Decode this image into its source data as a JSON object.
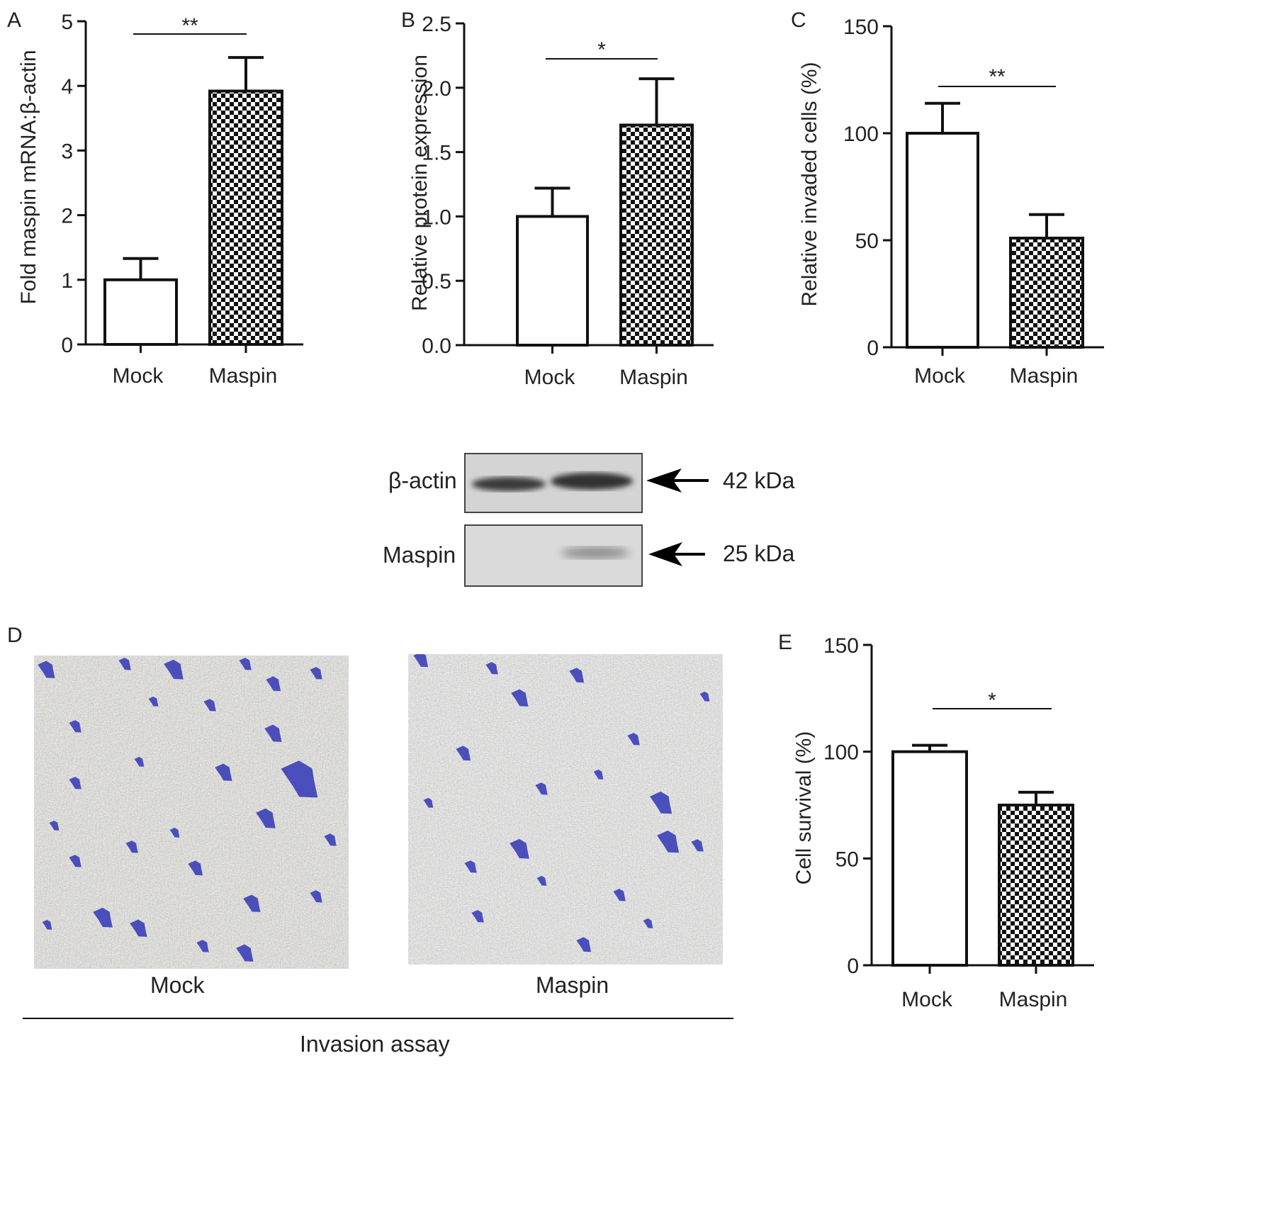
{
  "panel_letters": {
    "a": "A",
    "b": "B",
    "c": "C",
    "d": "D",
    "e": "E"
  },
  "chart_data": [
    {
      "panel": "A",
      "type": "bar",
      "categories": [
        "Mock",
        "Maspin"
      ],
      "values": [
        1.0,
        3.92
      ],
      "errors": [
        0.33,
        0.52
      ],
      "ylabel": "Fold maspin mRNA:β-actin",
      "ylim": [
        0,
        5
      ],
      "yticks": [
        "0",
        "1",
        "2",
        "3",
        "4",
        "5"
      ],
      "significance": "**"
    },
    {
      "panel": "B",
      "type": "bar",
      "categories": [
        "Mock",
        "Maspin"
      ],
      "values": [
        1.0,
        1.71
      ],
      "errors": [
        0.22,
        0.36
      ],
      "ylabel": "Relative protein expression",
      "ylim": [
        0,
        2.5
      ],
      "yticks": [
        "0.0",
        "0.5",
        "1.0",
        "1.5",
        "2.0",
        "2.5"
      ],
      "significance": "*"
    },
    {
      "panel": "C",
      "type": "bar",
      "categories": [
        "Mock",
        "Maspin"
      ],
      "values": [
        100,
        51
      ],
      "errors": [
        14,
        11
      ],
      "ylabel": "Relative invaded cells (%)",
      "ylim": [
        0,
        150
      ],
      "yticks": [
        "0",
        "50",
        "100",
        "150"
      ],
      "significance": "**"
    },
    {
      "panel": "E",
      "type": "bar",
      "categories": [
        "Mock",
        "Maspin"
      ],
      "values": [
        100,
        75
      ],
      "errors": [
        3,
        6
      ],
      "ylabel": "Cell survival (%)",
      "ylim": [
        0,
        150
      ],
      "yticks": [
        "0",
        "50",
        "100",
        "150"
      ],
      "significance": "*"
    }
  ],
  "blot": {
    "bands": [
      {
        "label": "β-actin",
        "kda": "42 kDa"
      },
      {
        "label": "Maspin",
        "kda": "25 kDa"
      }
    ]
  },
  "invasion": {
    "images": [
      "Mock",
      "Maspin"
    ],
    "caption": "Invasion assay"
  },
  "colors": {
    "axis": "#111111",
    "bar_fill_mock": "#ffffff",
    "pattern_dark": "#111111",
    "stain": "#3a3fb8"
  }
}
